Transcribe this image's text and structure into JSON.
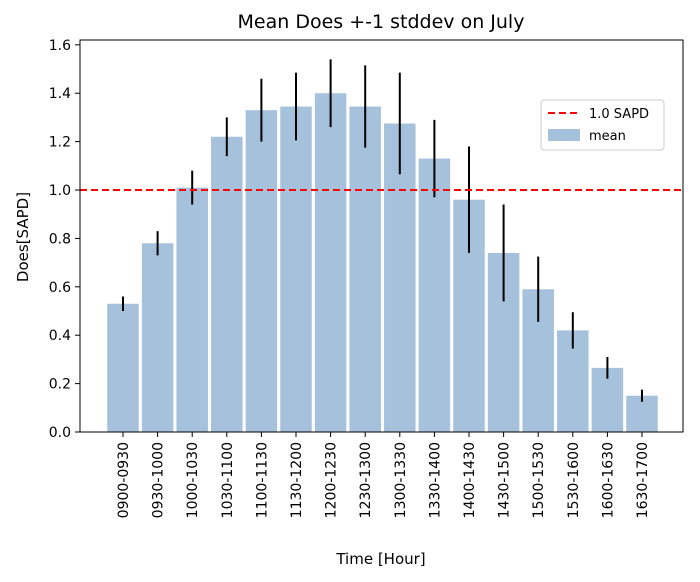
{
  "chart_data": {
    "type": "bar",
    "title": "Mean Does +-1 stddev on July",
    "xlabel": "Time [Hour]",
    "ylabel": "Does[SAPD]",
    "ylim": [
      0,
      1.62
    ],
    "yticks": [
      "0.0",
      "0.2",
      "0.4",
      "0.6",
      "0.8",
      "1.0",
      "1.2",
      "1.4",
      "1.6"
    ],
    "categories": [
      "0900-0930",
      "0930-1000",
      "1000-1030",
      "1030-1100",
      "1100-1130",
      "1130-1200",
      "1200-1230",
      "1230-1300",
      "1300-1330",
      "1330-1400",
      "1400-1430",
      "1430-1500",
      "1500-1530",
      "1530-1600",
      "1600-1630",
      "1630-1700"
    ],
    "series": [
      {
        "name": "mean",
        "values": [
          0.53,
          0.78,
          1.01,
          1.22,
          1.33,
          1.345,
          1.4,
          1.345,
          1.275,
          1.13,
          0.96,
          0.74,
          0.59,
          0.42,
          0.265,
          0.15
        ],
        "errors": [
          0.03,
          0.05,
          0.07,
          0.08,
          0.13,
          0.14,
          0.14,
          0.17,
          0.21,
          0.16,
          0.22,
          0.2,
          0.135,
          0.075,
          0.045,
          0.025
        ]
      }
    ],
    "reference_line": {
      "name": "1.0 SAPD",
      "value": 1.0,
      "color": "#ff0000"
    },
    "legend_position": "upper-right",
    "grid": false,
    "colors": {
      "bar": "#a6c1dc",
      "error": "#000000",
      "reference": "#ff0000"
    }
  }
}
